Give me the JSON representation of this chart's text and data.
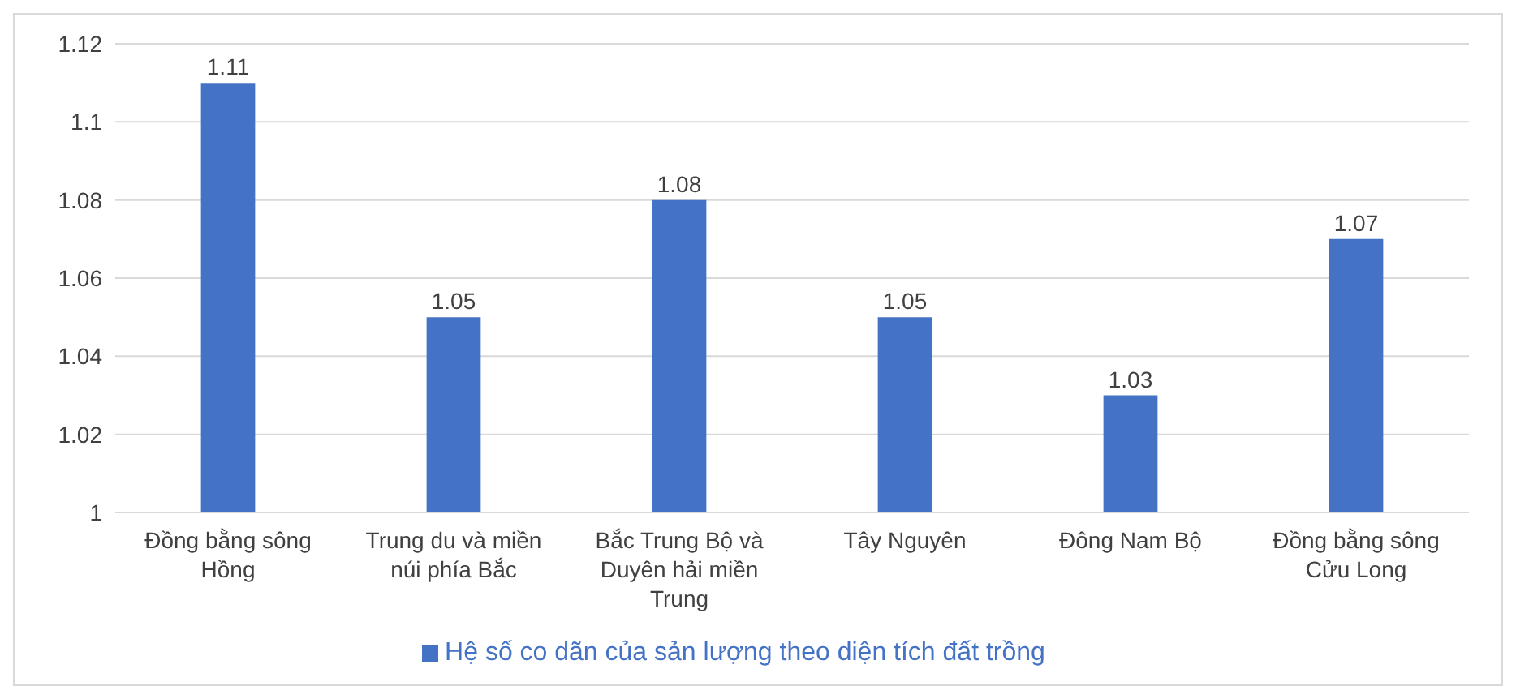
{
  "chart_data": {
    "type": "bar",
    "categories": [
      "Đồng bằng sông Hồng",
      "Trung du và miền núi phía Bắc",
      "Bắc Trung Bộ và Duyên hải miền Trung",
      "Tây Nguyên",
      "Đông Nam Bộ",
      "Đồng bằng sông Cửu Long"
    ],
    "series": [
      {
        "name": "Hệ số co dãn của sản lượng theo diện tích đất trồng",
        "color": "#4472c4",
        "values": [
          1.11,
          1.05,
          1.08,
          1.05,
          1.03,
          1.07
        ]
      }
    ],
    "ylim": [
      1,
      1.12
    ],
    "yticks": [
      1,
      1.02,
      1.04,
      1.06,
      1.08,
      1.1,
      1.12
    ],
    "grid": "y",
    "legend": "bottom",
    "data_labels": true
  }
}
